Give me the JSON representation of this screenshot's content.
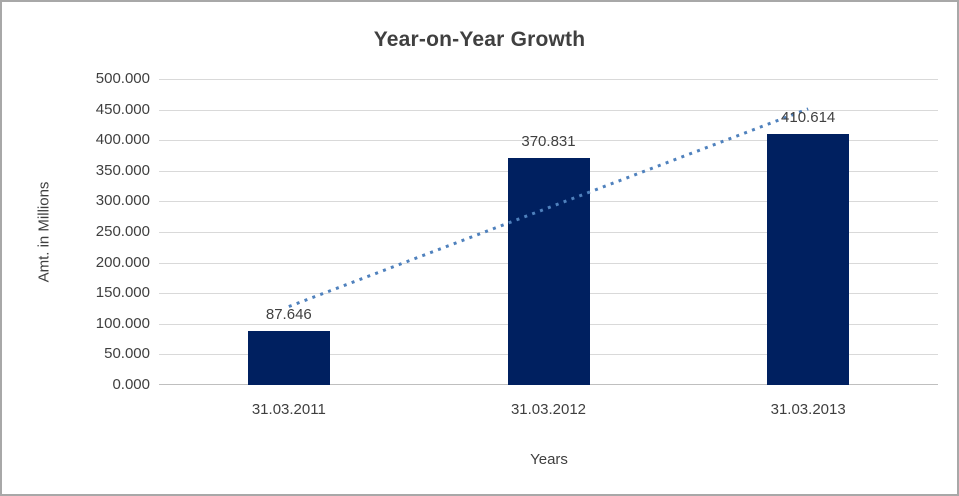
{
  "chart_data": {
    "type": "bar",
    "title": "Year-on-Year Growth",
    "xlabel": "Years",
    "ylabel": "Amt. in Millions",
    "categories": [
      "31.03.2011",
      "31.03.2012",
      "31.03.2013"
    ],
    "values": [
      87.646,
      370.831,
      410.614
    ],
    "value_labels": [
      "87.646",
      "370.831",
      "410.614"
    ],
    "ylim": [
      0,
      500
    ],
    "y_tick_step": 50,
    "y_tick_labels": [
      "0.000",
      "50.000",
      "100.000",
      "150.000",
      "200.000",
      "250.000",
      "300.000",
      "350.000",
      "400.000",
      "450.000",
      "500.000"
    ],
    "grid": true,
    "legend": "none",
    "trendline": {
      "kind": "linear",
      "style": "dotted",
      "spans_categories": [
        "31.03.2011",
        "31.03.2013"
      ]
    },
    "colors": {
      "bar": "#002060",
      "trendline": "#4f81bd",
      "gridline": "#d9d9d9",
      "axis_line": "#bfbfbf",
      "text": "#404040",
      "frame_border": "#a8a8a8",
      "background": "#ffffff"
    }
  }
}
